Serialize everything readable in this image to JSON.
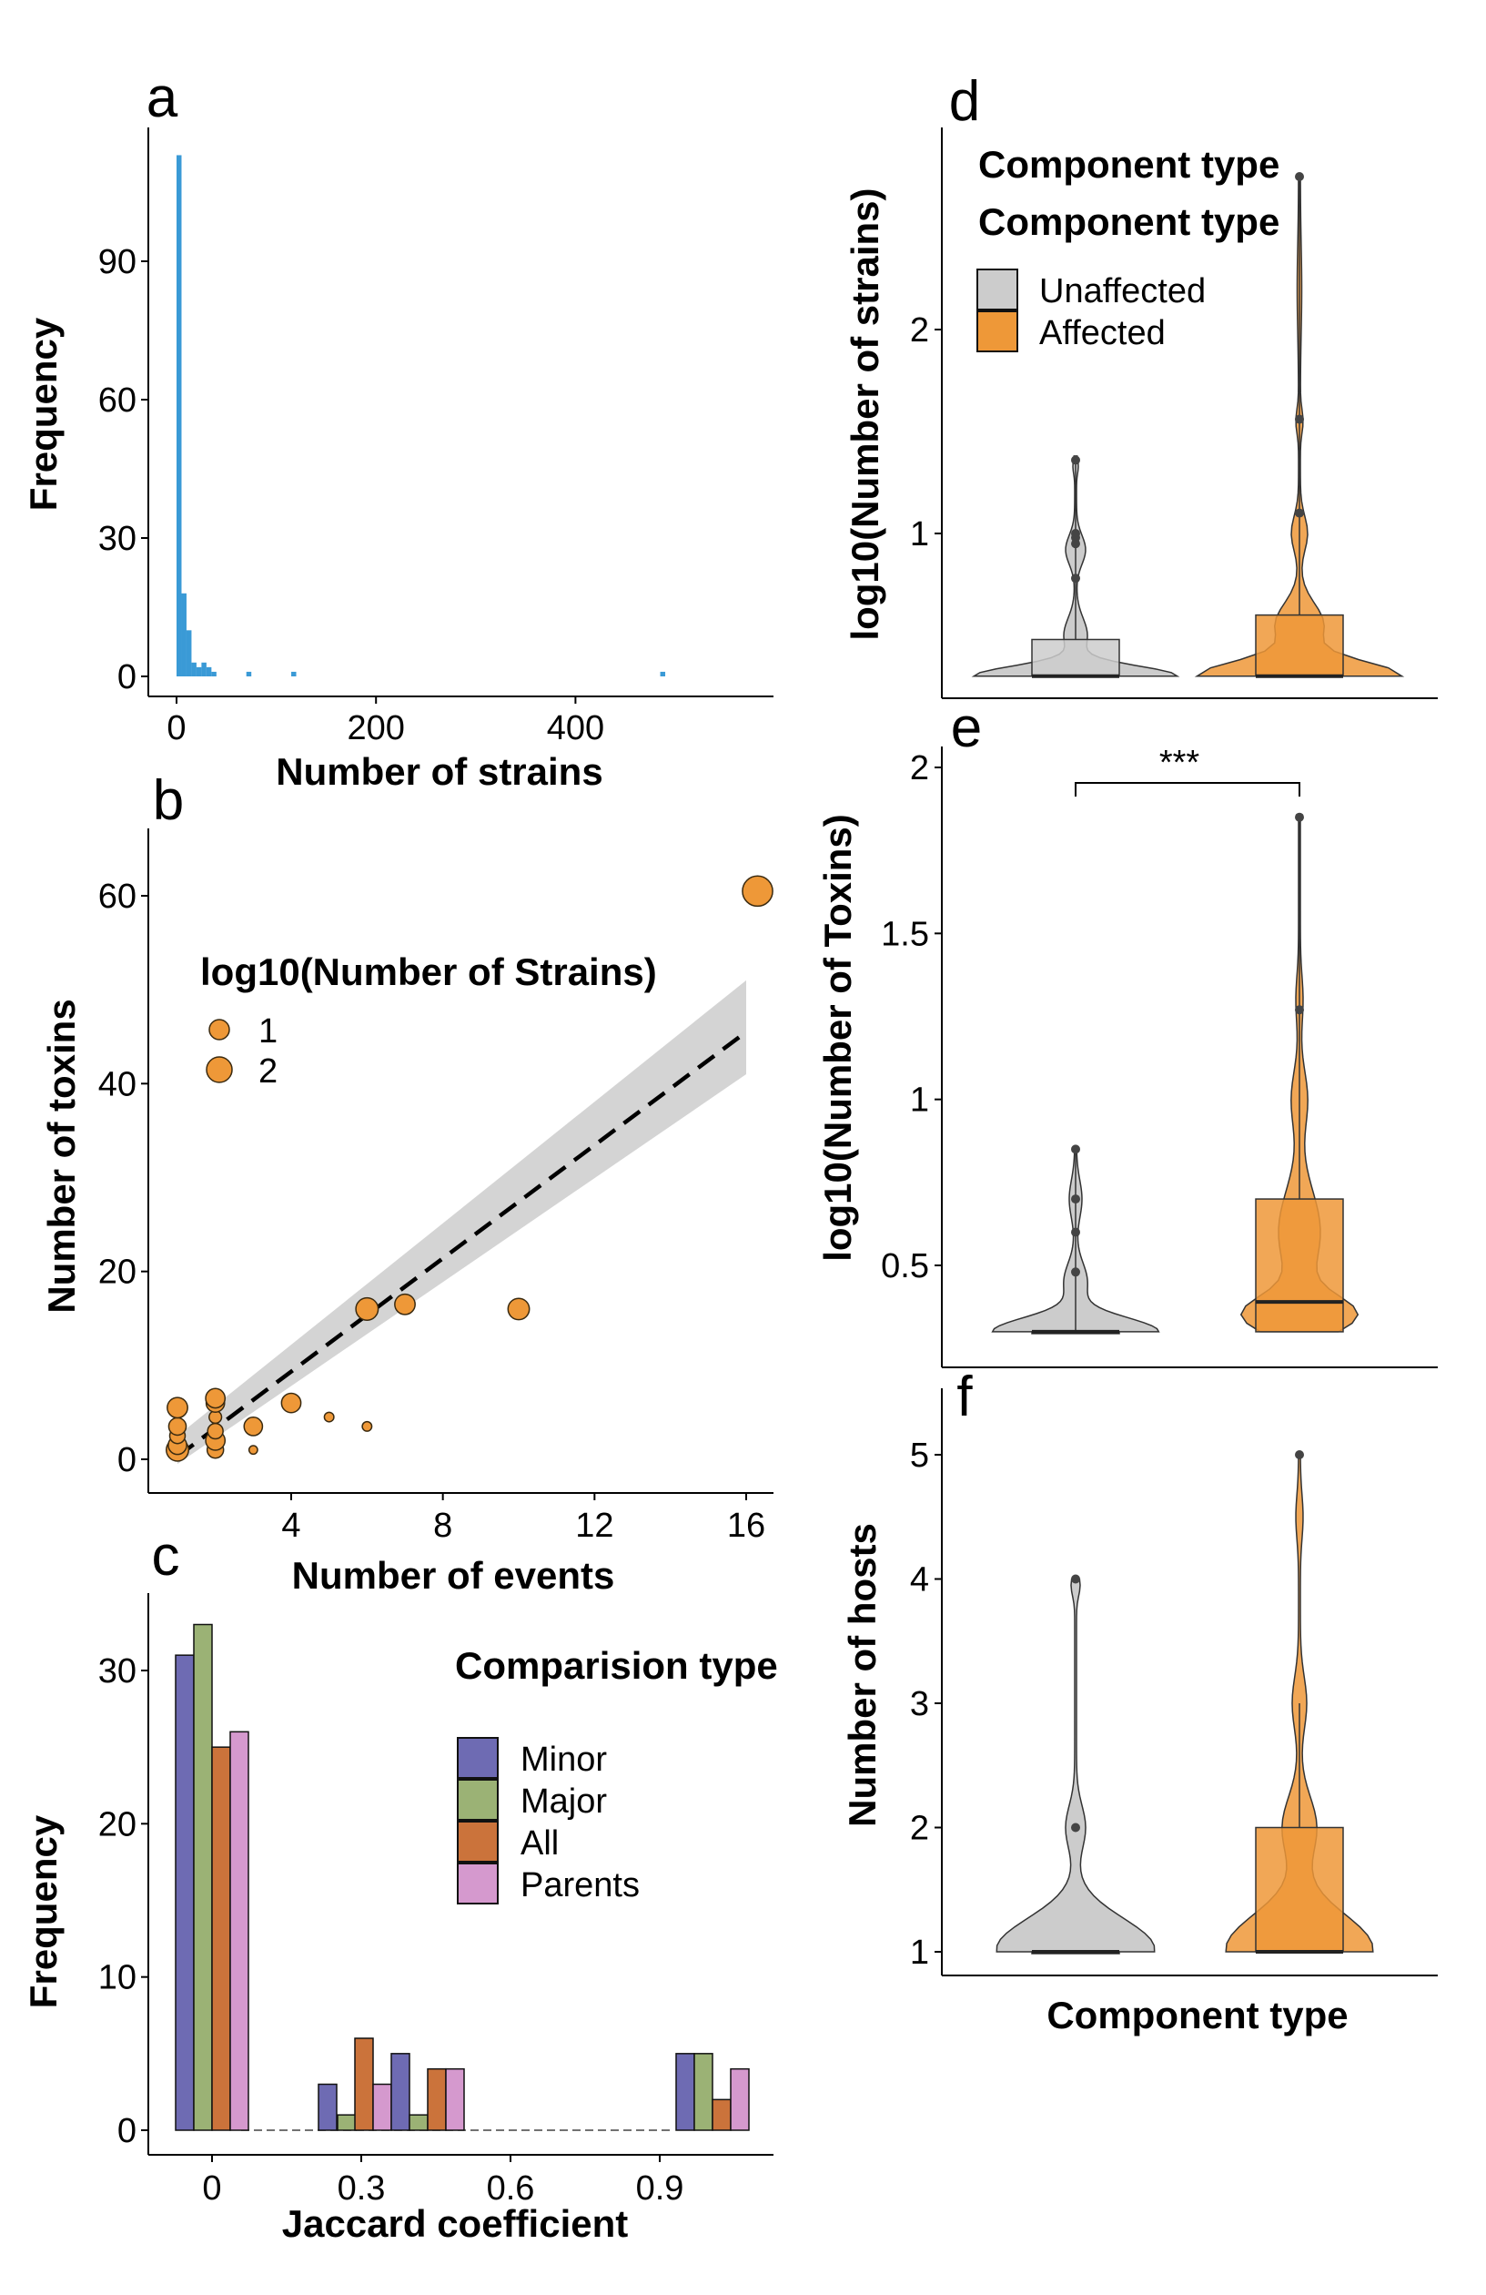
{
  "colors": {
    "blue": "#3a9ad6",
    "orange": "#ee9838",
    "grey": "#cccccc",
    "minor": "#6e6bb3",
    "major": "#9bb275",
    "all": "#cb733b",
    "parents": "#d599ce"
  },
  "chart_data": [
    {
      "panel": "a",
      "type": "bar",
      "xlabel": "Number of strains",
      "ylabel": "Frequency",
      "xticks": [
        "0",
        "200",
        "400"
      ],
      "yticks": [
        "0",
        "30",
        "60",
        "90"
      ],
      "xlim": [
        -20,
        560
      ],
      "ylim": [
        0,
        118
      ],
      "bin_width": 5,
      "x": [
        0,
        5,
        10,
        15,
        20,
        25,
        30,
        35,
        70,
        115,
        485
      ],
      "values": [
        113,
        18,
        10,
        3,
        2,
        3,
        2,
        1,
        1,
        1,
        1
      ]
    },
    {
      "panel": "b",
      "type": "scatter",
      "xlabel": "Number of events",
      "ylabel": "Number of toxins",
      "xticks": [
        "4",
        "8",
        "12",
        "16"
      ],
      "yticks": [
        "0",
        "20",
        "40",
        "60"
      ],
      "xlim": [
        0,
        16.7
      ],
      "ylim": [
        -2,
        67
      ],
      "legend_title": "log10(Number of Strains)",
      "legend_labels": [
        "1",
        "2"
      ],
      "points": [
        {
          "x": 1,
          "y": 1,
          "size": 1.9
        },
        {
          "x": 1,
          "y": 1.5,
          "size": 1.5
        },
        {
          "x": 1,
          "y": 2.5,
          "size": 1.2
        },
        {
          "x": 1,
          "y": 3.5,
          "size": 1.4
        },
        {
          "x": 1,
          "y": 5.5,
          "size": 1.7
        },
        {
          "x": 2,
          "y": 1,
          "size": 1.3
        },
        {
          "x": 2,
          "y": 2,
          "size": 1.6
        },
        {
          "x": 2,
          "y": 3,
          "size": 1.2
        },
        {
          "x": 2,
          "y": 4.5,
          "size": 0.9
        },
        {
          "x": 2,
          "y": 6,
          "size": 1.5
        },
        {
          "x": 2,
          "y": 6.5,
          "size": 1.6
        },
        {
          "x": 3,
          "y": 1,
          "size": 0.5
        },
        {
          "x": 3,
          "y": 3.5,
          "size": 1.5
        },
        {
          "x": 4,
          "y": 6,
          "size": 1.6
        },
        {
          "x": 5,
          "y": 4.5,
          "size": 0.6
        },
        {
          "x": 6,
          "y": 3.5,
          "size": 0.6
        },
        {
          "x": 6,
          "y": 16,
          "size": 1.9
        },
        {
          "x": 7,
          "y": 16.5,
          "size": 1.7
        },
        {
          "x": 10,
          "y": 16,
          "size": 1.8
        },
        {
          "x": 16.3,
          "y": 60.5,
          "size": 2.7
        }
      ],
      "fit": {
        "x": [
          1,
          16
        ],
        "y": [
          0.3,
          45.5
        ],
        "ci_low_at_16": 41,
        "ci_high_at_16": 51,
        "ci_at_1": [
          -0.5,
          2.5
        ]
      }
    },
    {
      "panel": "c",
      "type": "bar",
      "xlabel": "Jaccard coefficient",
      "ylabel": "Frequency",
      "xticks": [
        "0",
        "0.3",
        "0.6",
        "0.9"
      ],
      "yticks": [
        "0",
        "10",
        "20",
        "30"
      ],
      "ylim": [
        0,
        35
      ],
      "legend_title": "Comparision type",
      "legend_labels": [
        "Minor",
        "Major",
        "All",
        "Parents"
      ],
      "categories": [
        "0",
        "0.25",
        "0.3",
        "0.45",
        "1.0"
      ],
      "series": [
        {
          "name": "Minor",
          "values": [
            31,
            3,
            0,
            5,
            5
          ]
        },
        {
          "name": "Major",
          "values": [
            33,
            1,
            0,
            1,
            5
          ]
        },
        {
          "name": "All",
          "values": [
            25,
            0,
            6,
            4,
            2
          ]
        },
        {
          "name": "Parents",
          "values": [
            26,
            0,
            3,
            4,
            4
          ]
        }
      ]
    },
    {
      "panel": "d",
      "type": "violin",
      "ylabel": "log10(Number of strains)",
      "yticks": [
        "1",
        "2"
      ],
      "ylim": [
        0.2,
        2.85
      ],
      "legend_title": "Component type",
      "legend_labels": [
        "Unaffected",
        "Affected"
      ],
      "groups": [
        {
          "name": "Unaffected",
          "q1": 0.3,
          "median": 0.3,
          "q3": 0.48,
          "max": 1.38,
          "outliers": [
            0.78,
            0.95,
            0.98,
            1.0,
            1.36
          ]
        },
        {
          "name": "Affected",
          "q1": 0.3,
          "median": 0.3,
          "q3": 0.6,
          "max": 2.75,
          "outliers": [
            1.1,
            1.56,
            2.75
          ]
        }
      ]
    },
    {
      "panel": "e",
      "type": "violin",
      "ylabel": "log10(Number of Toxins)",
      "yticks": [
        "0.5",
        "1",
        "1.5",
        "2"
      ],
      "ylim": [
        0.22,
        2.02
      ],
      "significance": "***",
      "groups": [
        {
          "name": "Unaffected",
          "q1": 0.3,
          "median": 0.3,
          "q3": 0.3,
          "max": 0.85,
          "outliers": [
            0.48,
            0.6,
            0.7,
            0.85
          ]
        },
        {
          "name": "Affected",
          "q1": 0.3,
          "median": 0.39,
          "q3": 0.7,
          "max": 1.85,
          "outliers": [
            1.27,
            1.85
          ]
        }
      ]
    },
    {
      "panel": "f",
      "type": "violin",
      "xlabel": "Component type",
      "ylabel": "Number of hosts",
      "yticks": [
        "1",
        "2",
        "3",
        "4",
        "5"
      ],
      "ylim": [
        0.85,
        5.45
      ],
      "groups": [
        {
          "name": "Unaffected",
          "q1": 1,
          "median": 1,
          "q3": 1,
          "max": 1,
          "outliers": [
            2,
            4
          ]
        },
        {
          "name": "Affected",
          "q1": 1,
          "median": 1,
          "q3": 2,
          "max": 3,
          "outliers": [
            5
          ]
        }
      ]
    }
  ]
}
